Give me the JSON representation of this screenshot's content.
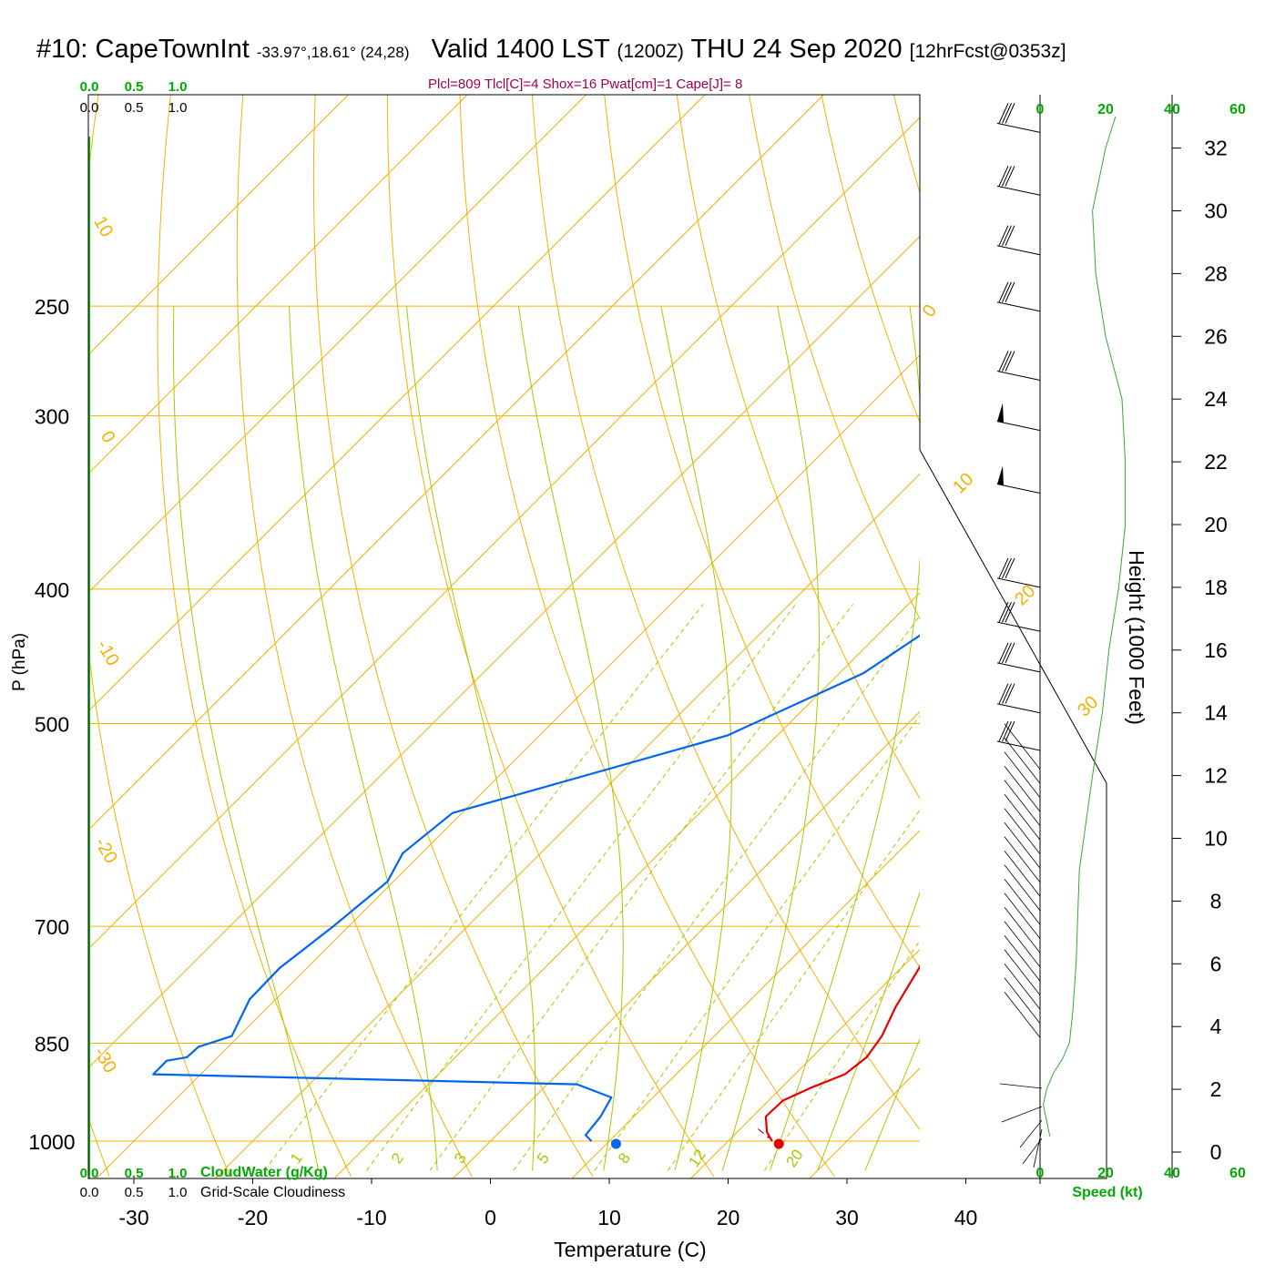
{
  "header": {
    "station": "#10: CapeTownInt",
    "coords": "-33.97°,18.61° (24,28)",
    "valid": "Valid 1400 LST",
    "utc": "(1200Z)",
    "date": "THU 24 Sep 2020",
    "forecast": "[12hrFcst@0353z]"
  },
  "indices": "Plcl=809 Tlcl[C]=4 Shox=16 Pwat[cm]=1 Cape[J]= 8",
  "colors": {
    "isotherm": "#f2b200",
    "adiabat": "#a9c800",
    "mixing": "#a9c800",
    "temperature": "#e60000",
    "dewpoint": "#0066ee",
    "green_text": "#00aa00",
    "index_text": "#a0004a",
    "speed_profile": "#33aa33"
  },
  "chart_data": {
    "type": "skew-t",
    "xlabel": "Temperature (C)",
    "ylabel": "P (hPa)",
    "right_axis_label": "Height (1000 Feet)",
    "x_ticks": [
      "-30",
      "-20",
      "-10",
      "0",
      "10",
      "20",
      "30",
      "40"
    ],
    "pressure_ticks": [
      "250",
      "300",
      "400",
      "500",
      "700",
      "850",
      "1000"
    ],
    "height_ticks": [
      "0",
      "2",
      "4",
      "6",
      "8",
      "10",
      "12",
      "14",
      "16",
      "18",
      "20",
      "22",
      "24",
      "26",
      "28",
      "30",
      "32"
    ],
    "isotherm_labels": [
      "10",
      "0",
      "-10",
      "-20",
      "-30",
      "0",
      "10",
      "20",
      "30"
    ],
    "mixing_ratio_labels": [
      "1",
      "2",
      "3",
      "5",
      "8",
      "12",
      "20"
    ],
    "cloud_scale_top_green": [
      "0.0",
      "0.5",
      "1.0"
    ],
    "cloud_scale_top_black": [
      "0.0",
      "0.5",
      "1.0"
    ],
    "cloud_scale_bottom_green": [
      "0.0",
      "0.5",
      "1.0"
    ],
    "cloud_scale_bottom_black": [
      "0.0",
      "0.5",
      "1.0"
    ],
    "cloudwater_label": "CloudWater (g/Kg)",
    "cloudiness_label": "Grid-Scale Cloudiness",
    "speed_ticks": [
      "0",
      "20",
      "40",
      "60"
    ],
    "speed_label": "Speed (kt)",
    "surface_temperature": 24.5,
    "surface_dewpoint": 10.8,
    "temperature_profile": [
      {
        "p": 1000,
        "t": 23.7
      },
      {
        "p": 985,
        "t": 22.5
      },
      {
        "p": 960,
        "t": 21.1
      },
      {
        "p": 935,
        "t": 21.2
      },
      {
        "p": 915,
        "t": 22.5
      },
      {
        "p": 895,
        "t": 24.2
      },
      {
        "p": 870,
        "t": 24.6
      },
      {
        "p": 840,
        "t": 24.1
      },
      {
        "p": 800,
        "t": 22.8
      },
      {
        "p": 750,
        "t": 21.5
      },
      {
        "p": 700,
        "t": 19.7
      },
      {
        "p": 650,
        "t": 18.2
      },
      {
        "p": 600,
        "t": 17.0
      },
      {
        "p": 550,
        "t": 15.8
      },
      {
        "p": 500,
        "t": 13.7
      },
      {
        "p": 450,
        "t": 11.2
      },
      {
        "p": 400,
        "t": 7.8
      },
      {
        "p": 370,
        "t": 5.8
      },
      {
        "p": 350,
        "t": 4.2
      },
      {
        "p": 320,
        "t": 3.6
      },
      {
        "p": 300,
        "t": 2.6
      },
      {
        "p": 280,
        "t": 1.6
      },
      {
        "p": 260,
        "t": 0.4
      }
    ],
    "dewpoint_profile": [
      {
        "p": 1000,
        "t": 8.5
      },
      {
        "p": 990,
        "t": 7.5
      },
      {
        "p": 960,
        "t": 7.2
      },
      {
        "p": 930,
        "t": 6.5
      },
      {
        "p": 910,
        "t": 2.5
      },
      {
        "p": 895,
        "t": -34.0
      },
      {
        "p": 875,
        "t": -34.0
      },
      {
        "p": 870,
        "t": -32.6
      },
      {
        "p": 855,
        "t": -32.5
      },
      {
        "p": 840,
        "t": -30.6
      },
      {
        "p": 790,
        "t": -32.2
      },
      {
        "p": 750,
        "t": -32.3
      },
      {
        "p": 700,
        "t": -31.3
      },
      {
        "p": 650,
        "t": -30.5
      },
      {
        "p": 620,
        "t": -31.6
      },
      {
        "p": 580,
        "t": -30.8
      },
      {
        "p": 510,
        "t": -14.2
      },
      {
        "p": 460,
        "t": -8.0
      },
      {
        "p": 430,
        "t": -6.3
      },
      {
        "p": 400,
        "t": -6.0
      },
      {
        "p": 370,
        "t": -8.3
      },
      {
        "p": 340,
        "t": -13.1
      },
      {
        "p": 325,
        "t": -16.0
      },
      {
        "p": 305,
        "t": -15.9
      },
      {
        "p": 280,
        "t": -13.9
      },
      {
        "p": 262,
        "t": -13.1
      }
    ],
    "parcel_trace": [
      {
        "p": 980,
        "t": 21.5
      },
      {
        "p": 995,
        "t": 23.2
      }
    ],
    "wind_speed_profile": [
      {
        "h": 0.5,
        "v": 3
      },
      {
        "h": 1.0,
        "v": 2
      },
      {
        "h": 1.5,
        "v": 1
      },
      {
        "h": 2.0,
        "v": 2
      },
      {
        "h": 2.5,
        "v": 4
      },
      {
        "h": 3.0,
        "v": 7
      },
      {
        "h": 3.5,
        "v": 9
      },
      {
        "h": 4.5,
        "v": 10
      },
      {
        "h": 6.0,
        "v": 11
      },
      {
        "h": 9.0,
        "v": 12
      },
      {
        "h": 12.0,
        "v": 16
      },
      {
        "h": 14.0,
        "v": 19
      },
      {
        "h": 16.0,
        "v": 21
      },
      {
        "h": 18.0,
        "v": 24
      },
      {
        "h": 20.0,
        "v": 26
      },
      {
        "h": 22.0,
        "v": 26
      },
      {
        "h": 24.0,
        "v": 25
      },
      {
        "h": 26.0,
        "v": 20
      },
      {
        "h": 28.0,
        "v": 17
      },
      {
        "h": 30.0,
        "v": 16
      },
      {
        "h": 32.0,
        "v": 20
      },
      {
        "h": 33.0,
        "v": 23
      }
    ]
  }
}
